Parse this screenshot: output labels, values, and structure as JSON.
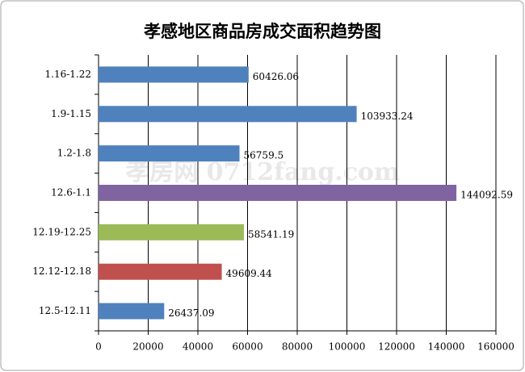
{
  "chart_data": {
    "type": "hbar",
    "title": "孝感地区商品房成交面积趋势图",
    "watermark": "孝房网 0712fang.com",
    "categories": [
      "1.16-1.22",
      "1.9-1.15",
      "1.2-1.8",
      "12.6-1.1",
      "12.19-12.25",
      "12.12-12.18",
      "12.5-12.11"
    ],
    "values": [
      60426.06,
      103933.24,
      56759.5,
      144092.59,
      58541.19,
      49609.44,
      26437.09
    ],
    "colors": [
      "#4f81bd",
      "#4f81bd",
      "#4f81bd",
      "#8064a2",
      "#9bbb59",
      "#c0504d",
      "#4f81bd"
    ],
    "xlim": [
      0,
      160000
    ],
    "xticks": [
      0,
      20000,
      40000,
      60000,
      80000,
      100000,
      120000,
      140000,
      160000
    ],
    "grid": true
  }
}
